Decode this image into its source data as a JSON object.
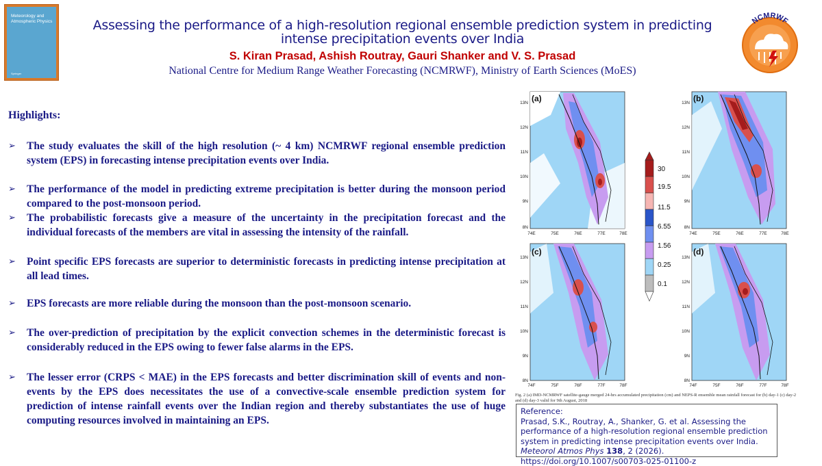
{
  "header": {
    "title": "Assessing the performance of a high-resolution regional ensemble prediction system in predicting intense precipitation events over India",
    "authors": "S. Kiran Prasad, Ashish Routray, Gauri Shanker and V. S. Prasad",
    "affiliation": "National Centre for Medium Range Weather Forecasting (NCMRWF), Ministry of Earth Sciences (MoES)",
    "journal_cover": {
      "title": "Meteorology and Atmospheric Physics",
      "publisher": "Springer"
    },
    "logo_text": "NCMRWF"
  },
  "highlights": {
    "heading": "Highlights:",
    "items": [
      "The study evaluates the skill of the high resolution (~ 4 km) NCMRWF regional ensemble prediction system (EPS) in forecasting intense precipitation events over India.",
      "The performance of the model in predicting extreme precipitation is better during the monsoon period compared to the post-monsoon period.",
      "The probabilistic forecasts give a measure of the uncertainty in the precipitation forecast and the individual forecasts of the members are vital in assessing the intensity of the rainfall.",
      "Point specific EPS forecasts are superior to deterministic forecasts in predicting intense precipitation at all lead times.",
      "EPS forecasts are more reliable during the monsoon than the post-monsoon scenario.",
      "The over-prediction of precipitation by the explicit convection schemes in the deterministic forecast is considerably reduced in the EPS owing to fewer false alarms in the EPS.",
      "The lesser error (CRPS < MAE) in the EPS forecasts and better discrimination skill of events and non-events by the EPS does necessitates the use of a convective-scale ensemble prediction system for prediction of intense rainfall events over the Indian region and thereby substantiates the use of huge computing resources involved in maintaining an EPS."
    ]
  },
  "figure": {
    "panels": [
      "(a)",
      "(b)",
      "(c)",
      "(d)"
    ],
    "lat_ticks": [
      "13N",
      "12N",
      "11N",
      "10N",
      "9N",
      "8N"
    ],
    "lon_ticks_top": [
      "74E",
      "75E",
      "76E",
      "77E",
      "78E"
    ],
    "lon_ticks_bottom": [
      "74F",
      "75F",
      "76F",
      "77F",
      "78F"
    ],
    "colorbar": {
      "labels": [
        "30",
        "19.5",
        "11.5",
        "6.55",
        "1.56",
        "0.25",
        "0.1"
      ],
      "colors": [
        "#a51c1c",
        "#d9504d",
        "#f6b6b3",
        "#2a55c9",
        "#6f8ff0",
        "#c79cf0",
        "#9fd6f6",
        "#bdbdbd",
        "#ffffff"
      ]
    },
    "caption": "Fig. 2 (a) IMD-NCMRWF satellite-gauge merged 24-hrs accumulated precipitation (cm) and NEPS-R ensemble mean rainfall forecast for (b) day-1 (c) day-2 and (d) day-3 valid for 9th August, 2018"
  },
  "reference": {
    "label": "Reference:",
    "text_before": "Prasad, S.K., Routray, A., Shanker, G. et al. Assessing the performance of a high-resolution regional ensemble prediction system in predicting intense precipitation events over India.",
    "journal": "Meteorol Atmos Phys",
    "volume": "138",
    "text_after": ", 2 (2026). https://doi.org/10.1007/s00703-025-01100-z"
  }
}
